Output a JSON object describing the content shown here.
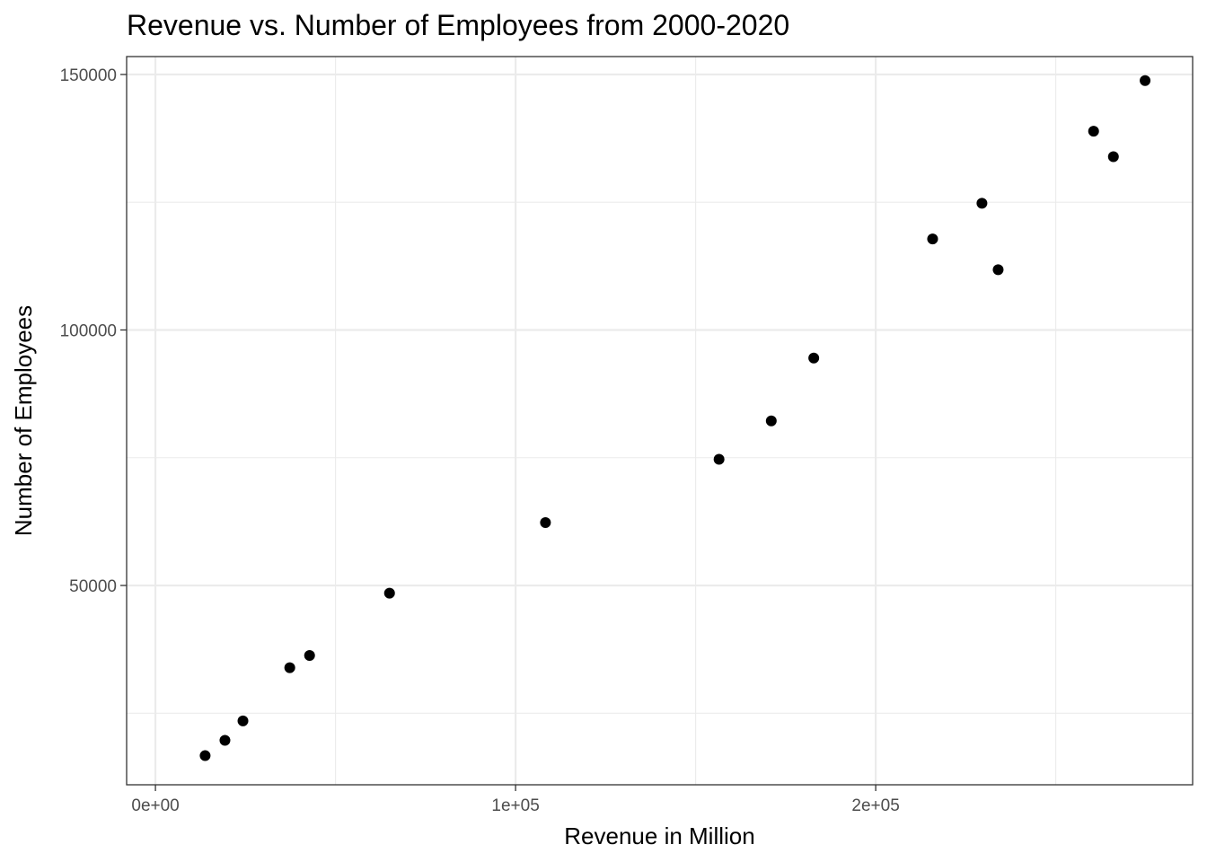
{
  "chart_data": {
    "type": "scatter",
    "title": "Revenue vs. Number of Employees from 2000-2020",
    "xlabel": "Revenue in Million",
    "ylabel": "Number of Employees",
    "xlim": [
      -8000,
      288000
    ],
    "ylim": [
      11000,
      153500
    ],
    "x_ticks": [
      {
        "value": 0,
        "label": "0e+00"
      },
      {
        "value": 100000,
        "label": "1e+05"
      },
      {
        "value": 200000,
        "label": "2e+05"
      }
    ],
    "x_minor": [
      50000,
      150000,
      250000
    ],
    "y_ticks": [
      {
        "value": 50000,
        "label": "50000"
      },
      {
        "value": 100000,
        "label": "100000"
      },
      {
        "value": 150000,
        "label": "150000"
      }
    ],
    "y_minor": [
      25000,
      75000,
      125000
    ],
    "grid": true,
    "legend": "none",
    "point_color": "#000000",
    "points": [
      {
        "x": 13800,
        "y": 16700
      },
      {
        "x": 19300,
        "y": 19700
      },
      {
        "x": 24300,
        "y": 23500
      },
      {
        "x": 37300,
        "y": 33900
      },
      {
        "x": 42800,
        "y": 36300
      },
      {
        "x": 65000,
        "y": 48500
      },
      {
        "x": 108300,
        "y": 62300
      },
      {
        "x": 156500,
        "y": 74700
      },
      {
        "x": 171000,
        "y": 82200
      },
      {
        "x": 182800,
        "y": 94500
      },
      {
        "x": 215800,
        "y": 117800
      },
      {
        "x": 229500,
        "y": 124800
      },
      {
        "x": 234000,
        "y": 111800
      },
      {
        "x": 260500,
        "y": 138900
      },
      {
        "x": 266000,
        "y": 133900
      },
      {
        "x": 274800,
        "y": 148800
      }
    ]
  }
}
